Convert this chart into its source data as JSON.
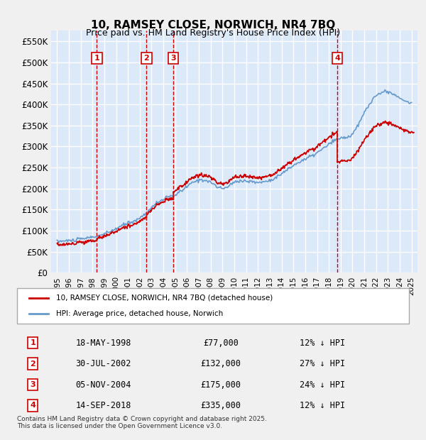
{
  "title": "10, RAMSEY CLOSE, NORWICH, NR4 7BQ",
  "subtitle": "Price paid vs. HM Land Registry's House Price Index (HPI)",
  "ylabel": "",
  "ylim": [
    0,
    575000
  ],
  "yticks": [
    0,
    50000,
    100000,
    150000,
    200000,
    250000,
    300000,
    350000,
    400000,
    450000,
    500000,
    550000
  ],
  "ytick_labels": [
    "£0",
    "£50K",
    "£100K",
    "£150K",
    "£200K",
    "£250K",
    "£300K",
    "£350K",
    "£400K",
    "£450K",
    "£500K",
    "£550K"
  ],
  "background_color": "#dce9f8",
  "plot_bg_color": "#dce9f8",
  "grid_color": "#ffffff",
  "sale_color": "#cc0000",
  "hpi_color": "#6699cc",
  "vline_color": "#cc0000",
  "transactions": [
    {
      "num": 1,
      "date": "18-MAY-1998",
      "price": 77000,
      "pct": "12%",
      "x_year": 1998.37
    },
    {
      "num": 2,
      "date": "30-JUL-2002",
      "price": 132000,
      "pct": "27%",
      "x_year": 2002.58
    },
    {
      "num": 3,
      "date": "05-NOV-2004",
      "price": 175000,
      "pct": "24%",
      "x_year": 2004.84
    },
    {
      "num": 4,
      "date": "14-SEP-2018",
      "price": 335000,
      "pct": "12%",
      "x_year": 2018.71
    }
  ],
  "legend_label_red": "10, RAMSEY CLOSE, NORWICH, NR4 7BQ (detached house)",
  "legend_label_blue": "HPI: Average price, detached house, Norwich",
  "footer": "Contains HM Land Registry data © Crown copyright and database right 2025.\nThis data is licensed under the Open Government Licence v3.0.",
  "xlim_start": 1994.5,
  "xlim_end": 2025.5
}
